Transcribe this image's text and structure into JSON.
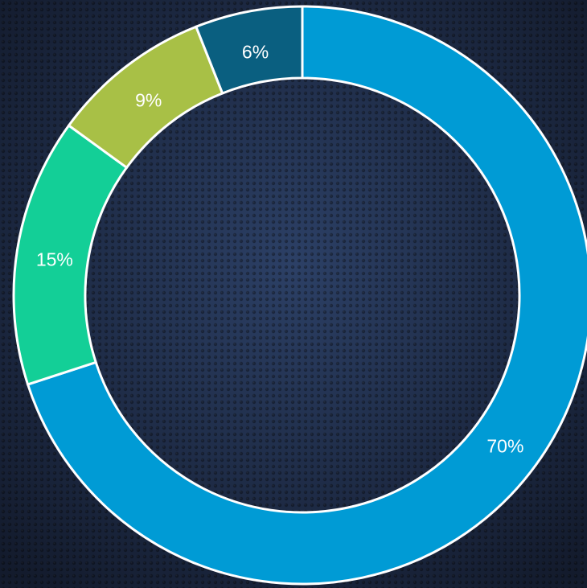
{
  "chart_data": {
    "type": "pie",
    "donut": true,
    "values": [
      70,
      15,
      9,
      6
    ],
    "value_labels": [
      "70%",
      "15%",
      "9%",
      "6%"
    ],
    "colors": [
      "#009bd5",
      "#13cf97",
      "#a8c046",
      "#0a5f80"
    ]
  }
}
